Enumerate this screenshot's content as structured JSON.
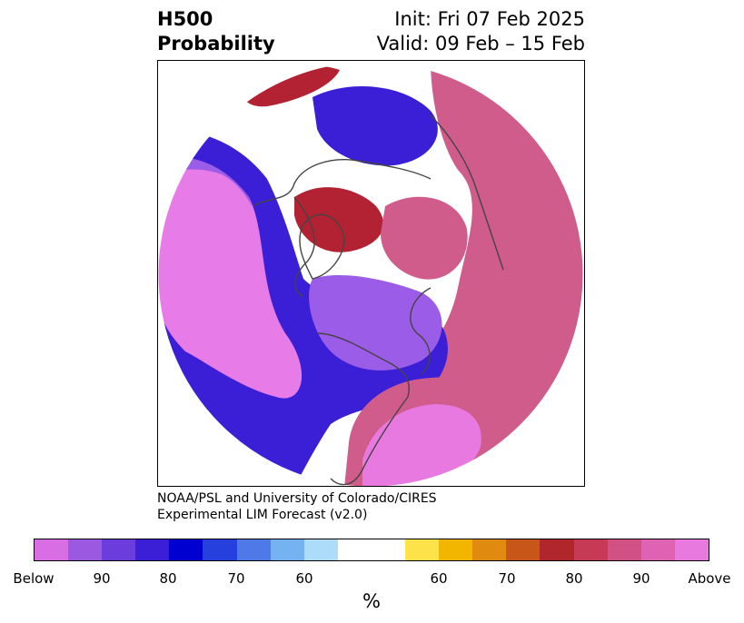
{
  "header": {
    "left_line1": "H500",
    "left_line2": "Probability",
    "right_line1": "Init: Fri 07 Feb 2025",
    "right_line2": "Valid: 09 Feb – 15 Feb"
  },
  "credit": {
    "line1": "NOAA/PSL and University of Colorado/CIRES",
    "line2": "Experimental LIM Forecast (v2.0)"
  },
  "map": {
    "projection": "polar-stereographic-north",
    "colors": {
      "below_strong": "#e77be7",
      "below_mid": "#9b5ce8",
      "below_weak": "#3a1fd6",
      "below_edge": "#0000d0",
      "below_fringe": "#5a8ae8",
      "below_light": "#a8dcf8",
      "neutral": "#ffffff",
      "above_fringe": "#fde24a",
      "above_light": "#f0b000",
      "above_edge": "#d4541a",
      "above_weak": "#b22232",
      "above_mid": "#d05c8c",
      "above_strong": "#e779e0",
      "coastline": "#444444"
    }
  },
  "colorbar": {
    "colors": [
      "#d96de3",
      "#9b59e2",
      "#6a3ddc",
      "#3a1fd6",
      "#0000d0",
      "#2640de",
      "#4f79e6",
      "#74b2f1",
      "#addcf9",
      "#ffffff",
      "#ffffff",
      "#fde24a",
      "#f3b600",
      "#e08a10",
      "#c85618",
      "#b0262a",
      "#c73a55",
      "#d25184",
      "#de63b2",
      "#e879df"
    ],
    "tick_labels": [
      "Below",
      "90",
      "80",
      "70",
      "60",
      "60",
      "70",
      "80",
      "90",
      "Above"
    ],
    "unit": "%"
  }
}
